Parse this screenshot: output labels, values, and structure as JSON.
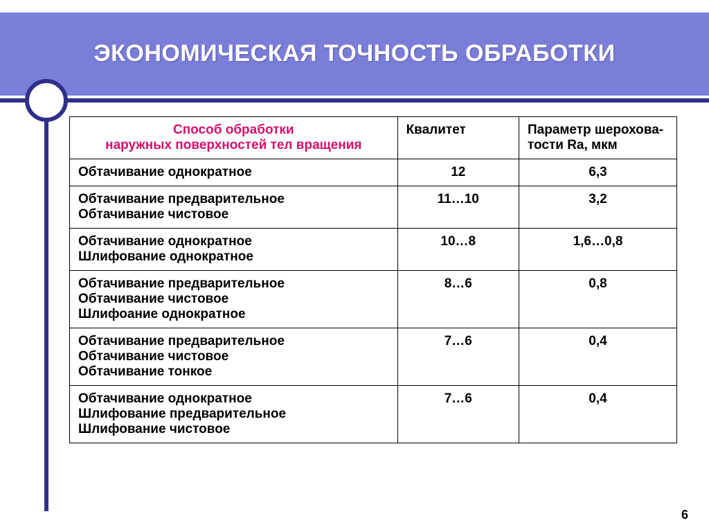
{
  "colors": {
    "band_bg": "#7a7ed9",
    "frame": "#2f2f8a",
    "title_text": "#ffffff",
    "method_header": "#d60f6a",
    "body_text": "#000000",
    "border": "#000000",
    "page_bg": "#ffffff"
  },
  "title": "ЭКОНОМИЧЕСКАЯ ТОЧНОСТЬ ОБРАБОТКИ",
  "table": {
    "headers": {
      "method_line1": "Способ обработки",
      "method_line2": "наружных поверхностей тел вращения",
      "kvalitet": "Квалитет",
      "roughness": "Параметр шерохова-тости Ra, мкм"
    },
    "rows": [
      {
        "method": [
          "Обтачивание однократное"
        ],
        "kvalitet": "12",
        "ra": "6,3"
      },
      {
        "method": [
          "Обтачивание предварительное",
          "Обтачивание чистовое"
        ],
        "kvalitet": "11…10",
        "ra": "3,2"
      },
      {
        "method": [
          "Обтачивание однократное",
          "Шлифование однократное"
        ],
        "kvalitet": "10…8",
        "ra": "1,6…0,8"
      },
      {
        "method": [
          "Обтачивание предварительное",
          "Обтачивание чистовое",
          "Шлифоание однократное"
        ],
        "kvalitet": "8…6",
        "ra": "0,8"
      },
      {
        "method": [
          "Обтачивание предварительное",
          "Обтачивание чистовое",
          "Обтачивание тонкое"
        ],
        "kvalitet": "7…6",
        "ra": "0,4"
      },
      {
        "method": [
          "Обтачивание однократное",
          "Шлифование предварительное",
          "Шлифование чистовое"
        ],
        "kvalitet": "7…6",
        "ra": "0,4"
      }
    ]
  },
  "page_number": "6",
  "typography": {
    "title_fontsize": 34,
    "header_fontsize": 19,
    "cell_fontsize": 19,
    "font_family": "Arial"
  },
  "layout": {
    "slide_width": 1024,
    "slide_height": 768,
    "col_widths_pct": [
      54,
      20,
      26
    ]
  }
}
